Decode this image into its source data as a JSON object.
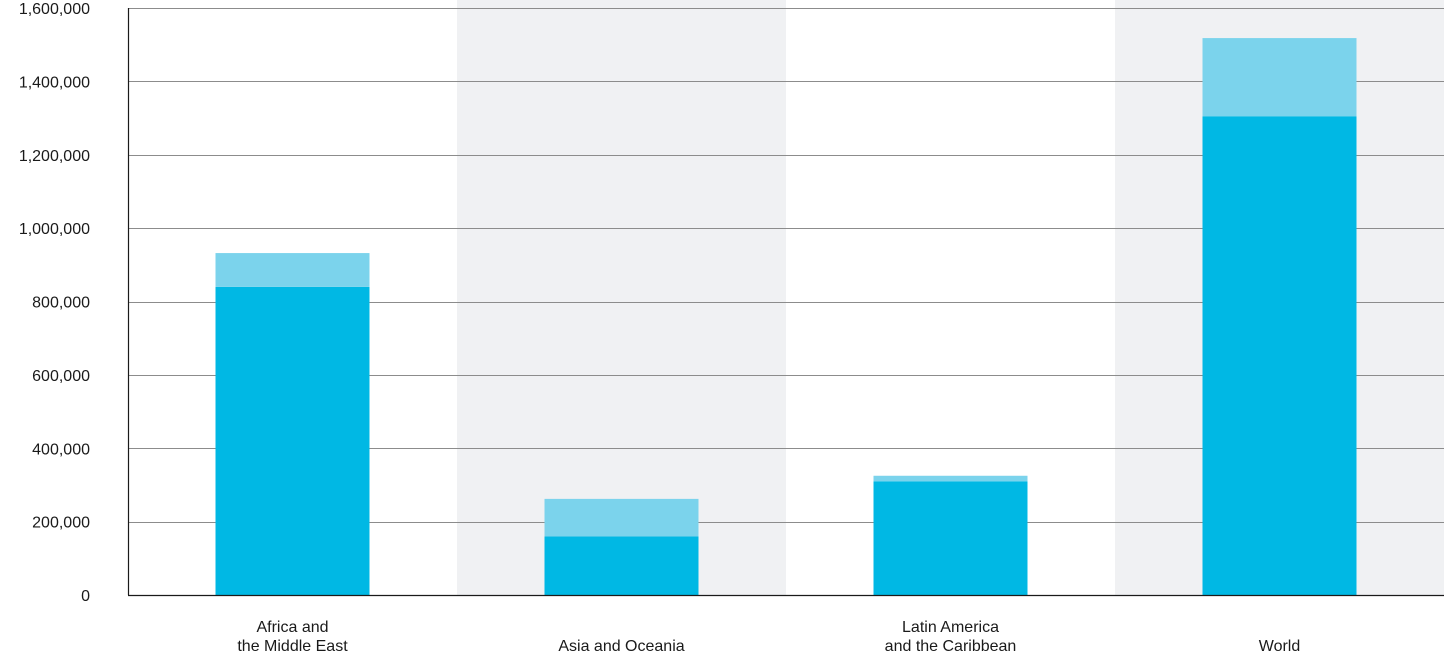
{
  "chart_data": {
    "type": "bar",
    "stacked": true,
    "categories": [
      [
        "Africa and",
        "the Middle East"
      ],
      [
        "Asia and Oceania"
      ],
      [
        "Latin America",
        "and the Caribbean"
      ],
      [
        "World"
      ]
    ],
    "series": [
      {
        "values": [
          840000,
          160000,
          310000,
          1305000
        ],
        "color": "#00b8e4"
      },
      {
        "values": [
          92000,
          102000,
          15000,
          213000
        ],
        "color": "#7bd3ec"
      }
    ],
    "ylim": [
      0,
      1600000
    ],
    "yticks": [
      0,
      200000,
      400000,
      600000,
      800000,
      1000000,
      1200000,
      1400000,
      1600000
    ],
    "ytick_labels": [
      "0",
      "200,000",
      "400,000",
      "600,000",
      "800,000",
      "1,000,000",
      "1,200,000",
      "1,400,000",
      "1,600,000"
    ],
    "grid": true,
    "band_color": "#f0f1f3",
    "banded_categories": [
      1,
      3
    ],
    "title": "",
    "xlabel": "",
    "ylabel": ""
  }
}
